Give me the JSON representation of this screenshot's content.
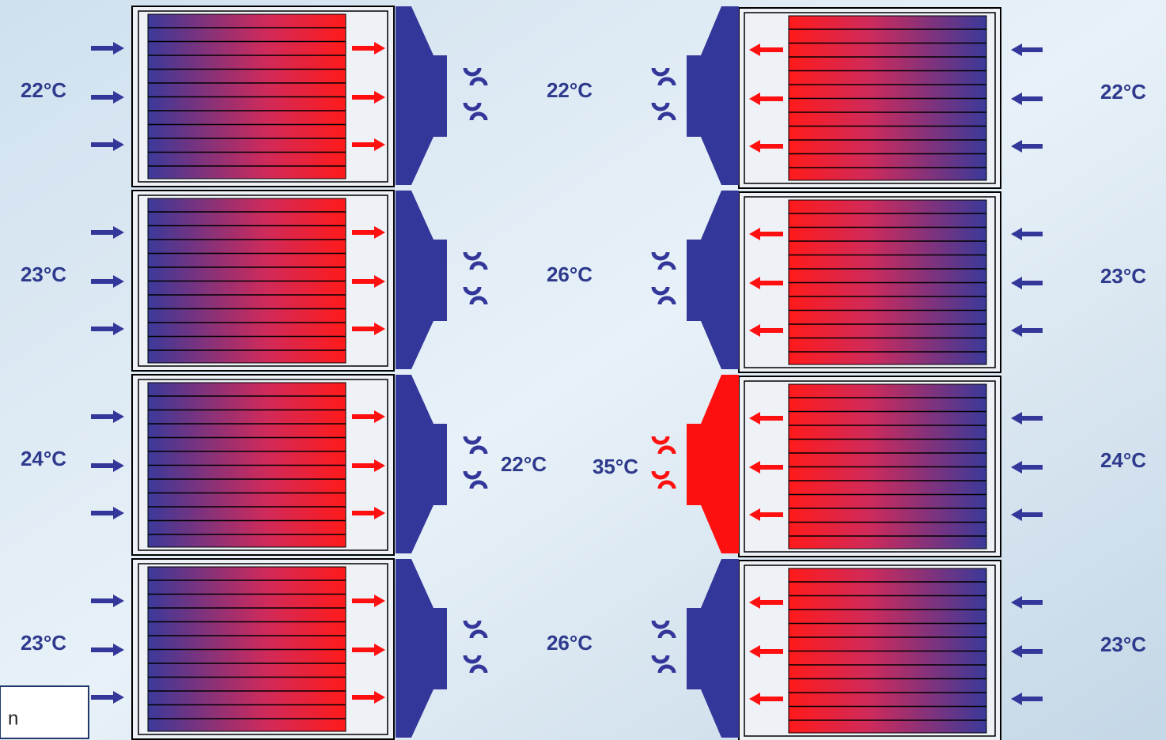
{
  "left_racks": [
    {
      "inlet": "22°C",
      "outlet": "22°C"
    },
    {
      "inlet": "23°C",
      "outlet": "26°C"
    },
    {
      "inlet": "24°C",
      "outlet": "22°C"
    },
    {
      "inlet": "23°C",
      "outlet": "26°C"
    }
  ],
  "right_racks": [
    {
      "inlet": "22°C"
    },
    {
      "inlet": "23°C"
    },
    {
      "inlet": "24°C",
      "outlet": "35°C"
    },
    {
      "inlet": "23°C"
    }
  ],
  "note": "n"
}
